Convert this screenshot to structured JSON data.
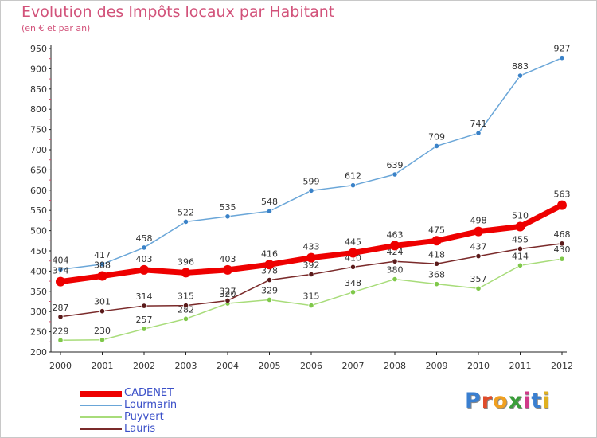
{
  "title": "Evolution des Impôts locaux par Habitant",
  "subtitle": "(en € et par an)",
  "logo": {
    "text": "Proxiti",
    "colors": [
      "#3a7fd0",
      "#e04b2a",
      "#f0a020",
      "#3a9e3a",
      "#d03a8a",
      "#3a7fd0",
      "#e0b020"
    ]
  },
  "chart_data": {
    "type": "line",
    "title": "Evolution des Impôts locaux par Habitant",
    "subtitle": "(en € et par an)",
    "xlabel": "",
    "ylabel": "",
    "x": [
      "2000",
      "2001",
      "2002",
      "2003",
      "2004",
      "2005",
      "2006",
      "2007",
      "2008",
      "2009",
      "2010",
      "2011",
      "2012"
    ],
    "ylim": [
      200,
      950
    ],
    "yticks": [
      200,
      250,
      300,
      350,
      400,
      450,
      500,
      550,
      600,
      650,
      700,
      750,
      800,
      850,
      900,
      950
    ],
    "grid": false,
    "legend": "bottom-left",
    "series": [
      {
        "name": "Lourmarin",
        "color": "#6aa6d8",
        "marker": "#3a82c8",
        "values": [
          404,
          417,
          458,
          522,
          535,
          548,
          599,
          612,
          639,
          709,
          741,
          883,
          927
        ]
      },
      {
        "name": "Puyvert",
        "color": "#a8dc7a",
        "marker": "#7fc84a",
        "values": [
          229,
          230,
          257,
          282,
          320,
          329,
          315,
          348,
          380,
          368,
          357,
          414,
          430
        ]
      },
      {
        "name": "Lauris",
        "color": "#7a2a2a",
        "marker": "#5a1a1a",
        "values": [
          287,
          301,
          314,
          315,
          327,
          378,
          392,
          410,
          424,
          418,
          437,
          455,
          468
        ]
      },
      {
        "name": "CADENET",
        "color": "#ee0000",
        "marker": "#ee0000",
        "values": [
          374,
          388,
          403,
          396,
          403,
          416,
          433,
          445,
          463,
          475,
          498,
          510,
          563
        ]
      }
    ],
    "legend_order": [
      "CADENET",
      "Lourmarin",
      "Puyvert",
      "Lauris"
    ]
  }
}
